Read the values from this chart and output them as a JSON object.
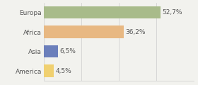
{
  "categories": [
    "Europa",
    "Africa",
    "Asia",
    "America"
  ],
  "values": [
    52.7,
    36.2,
    6.5,
    4.5
  ],
  "labels": [
    "52,7%",
    "36,2%",
    "6,5%",
    "4,5%"
  ],
  "bar_colors": [
    "#a8bb8a",
    "#e8b882",
    "#6b7fbb",
    "#f0d070"
  ],
  "background_color": "#f2f2ee",
  "xlim": [
    0,
    68
  ],
  "label_fontsize": 6.5,
  "category_fontsize": 6.5,
  "xticks": [
    0,
    17,
    34,
    51,
    68
  ]
}
